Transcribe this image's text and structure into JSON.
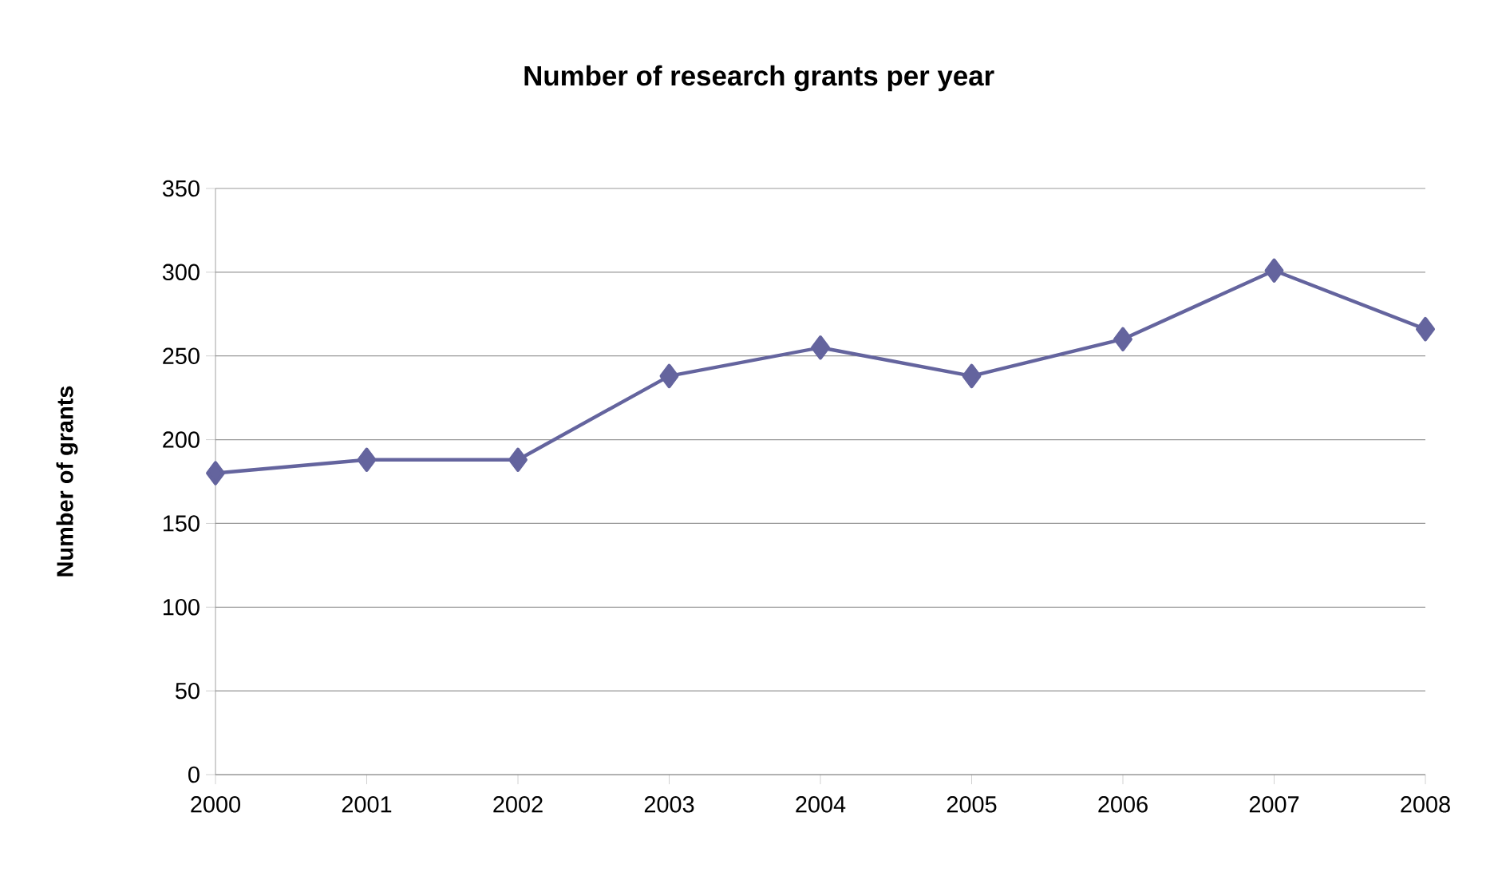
{
  "chart_data": {
    "type": "line",
    "title": "Number of research grants per year",
    "ylabel": "Number of grants",
    "x": [
      2000,
      2001,
      2002,
      2003,
      2004,
      2005,
      2006,
      2007,
      2008
    ],
    "series": [
      {
        "color": "#64649e",
        "values": [
          180,
          188,
          188,
          238,
          255,
          238,
          260,
          301,
          266
        ]
      }
    ],
    "xlim": [
      2000,
      2008
    ],
    "xticks": [
      2000,
      2001,
      2002,
      2003,
      2004,
      2005,
      2006,
      2007,
      2008
    ],
    "ylim": [
      0,
      350
    ],
    "yticks": [
      0,
      50,
      100,
      150,
      200,
      250,
      300,
      350
    ],
    "grid": "y",
    "legend": false,
    "marker": "diamond",
    "line_style": "solid"
  }
}
